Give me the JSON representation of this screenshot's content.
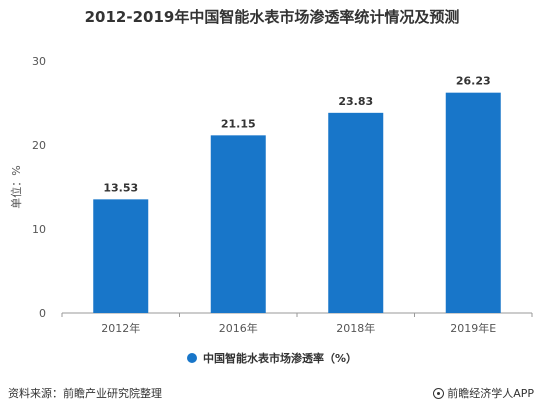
{
  "chart_data": {
    "type": "bar",
    "title": "2012-2019年中国智能水表市场渗透率统计情况及预测",
    "xlabel": "",
    "ylabel": "单位：%",
    "categories": [
      "2012年",
      "2016年",
      "2018年",
      "2019年E"
    ],
    "series": [
      {
        "name": "中国智能水表市场渗透率（%）",
        "values": [
          13.53,
          21.15,
          23.83,
          26.23
        ]
      }
    ],
    "ylim": [
      0,
      30
    ],
    "yticks": [
      0,
      10,
      20,
      30
    ],
    "grid": false,
    "legend": "bottom",
    "bar_color": "#1876c9"
  },
  "footer": {
    "source": "资料来源：前瞻产业研究院整理",
    "brand": "前瞻经济学人APP"
  }
}
